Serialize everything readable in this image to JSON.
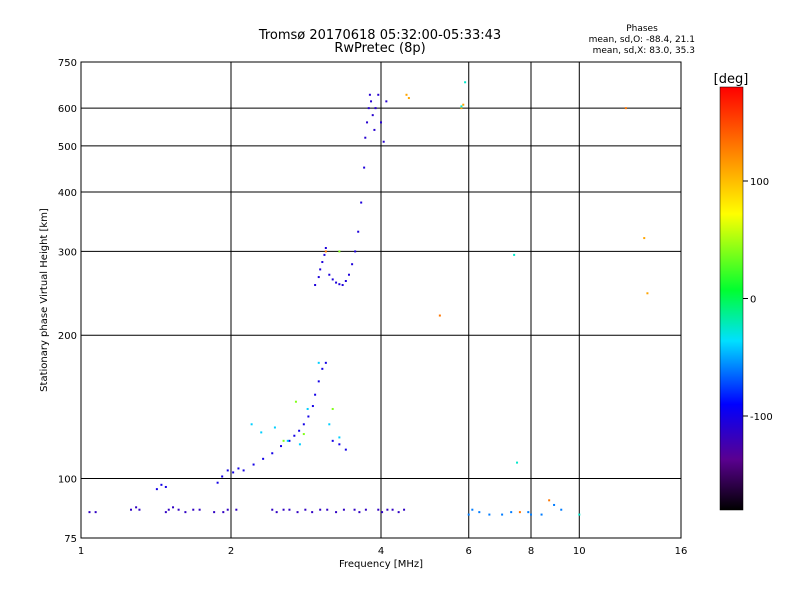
{
  "chart_data": {
    "type": "scatter",
    "title": "Tromsø 20170618 05:32:00-05:33:43",
    "subtitle": "RwPretec (8p)",
    "stats": {
      "heading": "Phases",
      "line_o": "mean, sd,O: -88.4, 21.1",
      "line_x": "mean, sd,X:  83.0, 35.3"
    },
    "xlabel": "Frequency [MHz]",
    "ylabel": "Stationary phase Virtual Height [km]",
    "x_scale": "log",
    "y_scale": "log",
    "xlim": [
      1,
      16
    ],
    "ylim": [
      75,
      750
    ],
    "x_ticks": [
      1,
      2,
      4,
      6,
      8,
      10,
      16
    ],
    "x_tick_labels": [
      "1",
      "2",
      "4",
      "6",
      "8",
      "10",
      "16"
    ],
    "y_ticks": [
      75,
      100,
      200,
      300,
      400,
      500,
      600,
      750
    ],
    "y_tick_labels": [
      "75",
      "100",
      "200",
      "300",
      "400",
      "500",
      "600",
      "750"
    ],
    "grid": true,
    "colorbar": {
      "label": "[deg]",
      "range": [
        -180,
        180
      ],
      "ticks": [
        100,
        0,
        -100
      ],
      "tick_labels": [
        "100",
        "0",
        "-100"
      ]
    },
    "point_groups": [
      {
        "x": [
          1.04,
          1.07,
          1.26,
          1.29,
          1.31,
          1.48,
          1.5,
          1.53,
          1.57,
          1.62,
          1.68,
          1.73,
          1.85,
          1.93,
          1.97,
          2.05,
          2.42,
          2.47,
          2.55,
          2.62,
          2.72,
          2.82,
          2.91,
          3.02,
          3.12,
          3.25,
          3.37,
          3.54,
          3.62,
          3.73,
          3.95,
          4.02,
          4.12,
          4.22,
          4.34,
          4.45
        ],
        "y": [
          85,
          85,
          86,
          87,
          86,
          85,
          86,
          87,
          86,
          85,
          86,
          86,
          85,
          85,
          86,
          86,
          86,
          85,
          86,
          86,
          85,
          86,
          85,
          86,
          86,
          85,
          86,
          86,
          85,
          86,
          86,
          85,
          86,
          86,
          85,
          86
        ],
        "phase": -115
      },
      {
        "x": [
          1.42,
          1.45,
          1.48,
          1.88,
          1.92,
          1.97,
          2.02,
          2.07,
          2.12,
          2.22,
          2.32,
          2.42,
          2.52,
          2.62,
          2.68,
          2.74,
          2.8,
          2.86,
          2.92,
          2.95,
          3.0,
          3.05,
          3.1,
          3.2,
          3.3,
          3.4
        ],
        "y": [
          95,
          97,
          96,
          98,
          101,
          104,
          103,
          105,
          104,
          107,
          110,
          113,
          117,
          120,
          123,
          126,
          130,
          135,
          142,
          150,
          160,
          170,
          175,
          120,
          118,
          115
        ],
        "phase": -100
      },
      {
        "x": [
          2.95,
          3.0,
          3.02,
          3.05,
          3.08,
          3.1,
          3.15,
          3.2,
          3.25,
          3.3,
          3.35,
          3.4,
          3.45,
          3.5,
          3.55,
          3.6,
          3.65,
          3.7
        ],
        "y": [
          255,
          265,
          275,
          285,
          295,
          305,
          268,
          262,
          258,
          256,
          255,
          260,
          268,
          282,
          300,
          330,
          380,
          450
        ],
        "phase": -105
      },
      {
        "x": [
          3.72,
          3.75,
          3.78,
          3.8,
          3.82,
          3.85,
          3.88,
          3.9,
          3.95,
          4.0,
          4.05,
          4.1
        ],
        "y": [
          520,
          560,
          600,
          640,
          620,
          580,
          540,
          600,
          640,
          560,
          510,
          620
        ],
        "phase": -110
      },
      {
        "x": [
          2.2,
          2.3,
          2.45,
          2.6,
          2.75,
          2.85,
          3.0,
          3.15,
          3.3
        ],
        "y": [
          130,
          125,
          128,
          120,
          118,
          140,
          175,
          130,
          122
        ],
        "phase": -40
      },
      {
        "x": [
          2.55,
          2.7,
          2.8,
          3.2,
          3.3
        ],
        "y": [
          120,
          145,
          124,
          140,
          300
        ],
        "phase": 40
      },
      {
        "x": [
          3.1,
          5.25,
          7.6,
          8.7,
          12.4
        ],
        "y": [
          300,
          220,
          85,
          90,
          600
        ],
        "phase": 130
      },
      {
        "x": [
          4.5,
          4.55,
          5.8,
          5.85,
          13.5,
          13.7
        ],
        "y": [
          640,
          630,
          600,
          610,
          320,
          245
        ],
        "phase": 110
      },
      {
        "x": [
          5.9,
          5.8,
          7.4,
          7.5,
          10.0
        ],
        "y": [
          680,
          605,
          295,
          108,
          84
        ],
        "phase": -25
      },
      {
        "x": [
          6.0,
          6.1,
          6.3,
          6.6,
          7.0,
          7.3,
          7.9,
          8.0,
          8.4,
          8.9,
          9.2
        ],
        "y": [
          84,
          86,
          85,
          84,
          84,
          85,
          85,
          84,
          84,
          88,
          86
        ],
        "phase": -60
      }
    ]
  }
}
